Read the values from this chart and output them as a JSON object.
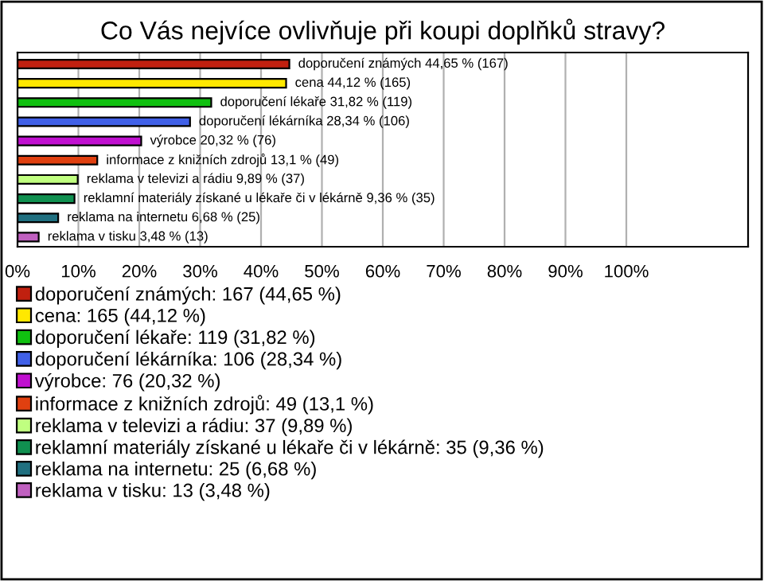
{
  "chart_data": {
    "type": "bar",
    "orientation": "horizontal",
    "title": "Co Vás nejvíce ovlivňuje při koupi doplňků stravy?",
    "categories": [
      null,
      null,
      null,
      null,
      null,
      null,
      null,
      null,
      null,
      null
    ],
    "series": [
      {
        "name": "doporučení známých: 167 (44,65 %)",
        "color": "#c0200f",
        "values": [
          44.65,
          null,
          null,
          null,
          null,
          null,
          null,
          null,
          null,
          null
        ],
        "value_labels": [
          "doporučení známých 44,65 % (167)",
          null,
          null,
          null,
          null,
          null,
          null,
          null,
          null,
          null
        ]
      },
      {
        "name": "cena: 165 (44,12 %)",
        "color": "#ffe800",
        "values": [
          null,
          44.12,
          null,
          null,
          null,
          null,
          null,
          null,
          null,
          null
        ],
        "value_labels": [
          null,
          "cena 44,12 % (165)",
          null,
          null,
          null,
          null,
          null,
          null,
          null,
          null
        ]
      },
      {
        "name": "doporučení lékaře: 119 (31,82 %)",
        "color": "#10c010",
        "values": [
          null,
          null,
          31.82,
          null,
          null,
          null,
          null,
          null,
          null,
          null
        ],
        "value_labels": [
          null,
          null,
          "doporučení lékaře 31,82 % (119)",
          null,
          null,
          null,
          null,
          null,
          null,
          null
        ]
      },
      {
        "name": "doporučení lékárníka: 106 (28,34 %)",
        "color": "#4060e8",
        "values": [
          null,
          null,
          null,
          28.34,
          null,
          null,
          null,
          null,
          null,
          null
        ],
        "value_labels": [
          null,
          null,
          null,
          "doporučení lékárníka 28,34 % (106)",
          null,
          null,
          null,
          null,
          null,
          null
        ]
      },
      {
        "name": "výrobce: 76 (20,32 %)",
        "color": "#c010d0",
        "values": [
          null,
          null,
          null,
          null,
          20.32,
          null,
          null,
          null,
          null,
          null
        ],
        "value_labels": [
          null,
          null,
          null,
          null,
          "výrobce 20,32 % (76)",
          null,
          null,
          null,
          null,
          null
        ]
      },
      {
        "name": "informace z knižních zdrojů: 49 (13,1 %)",
        "color": "#e04010",
        "values": [
          null,
          null,
          null,
          null,
          null,
          13.1,
          null,
          null,
          null,
          null
        ],
        "value_labels": [
          null,
          null,
          null,
          null,
          null,
          "informace z knižních zdrojů 13,1 % (49)",
          null,
          null,
          null,
          null
        ]
      },
      {
        "name": "reklama v televizi a rádiu: 37 (9,89 %)",
        "color": "#c0ff80",
        "values": [
          null,
          null,
          null,
          null,
          null,
          null,
          9.89,
          null,
          null,
          null
        ],
        "value_labels": [
          null,
          null,
          null,
          null,
          null,
          null,
          "reklama v televizi a rádiu 9,89 % (37)",
          null,
          null,
          null
        ]
      },
      {
        "name": "reklamní materiály získané u lékaře či v lékárně: 35 (9,36 %)",
        "color": "#109050",
        "values": [
          null,
          null,
          null,
          null,
          null,
          null,
          null,
          9.36,
          null,
          null
        ],
        "value_labels": [
          null,
          null,
          null,
          null,
          null,
          null,
          null,
          "reklamní materiály získané u lékaře či v lékárně 9,36 % (35)",
          null,
          null
        ]
      },
      {
        "name": "reklama na internetu: 25 (6,68 %)",
        "color": "#207080",
        "values": [
          null,
          null,
          null,
          null,
          null,
          null,
          null,
          null,
          6.68,
          null
        ],
        "value_labels": [
          null,
          null,
          null,
          null,
          null,
          null,
          null,
          null,
          "reklama na internetu 6,68 % (25)",
          null
        ]
      },
      {
        "name": "reklama v tisku: 13 (3,48 %)",
        "color": "#c060c0",
        "values": [
          null,
          null,
          null,
          null,
          null,
          null,
          null,
          null,
          null,
          3.48
        ],
        "value_labels": [
          null,
          null,
          null,
          null,
          null,
          null,
          null,
          null,
          null,
          "reklama v tisku 3,48 % (13)"
        ]
      }
    ],
    "xlim": [
      0,
      120
    ],
    "xticks": [
      {
        "value": 0,
        "label": "0%"
      },
      {
        "value": 10,
        "label": "10%"
      },
      {
        "value": 20,
        "label": "20%"
      },
      {
        "value": 30,
        "label": "30%"
      },
      {
        "value": 40,
        "label": "40%"
      },
      {
        "value": 50,
        "label": "50%"
      },
      {
        "value": 60,
        "label": "60%"
      },
      {
        "value": 70,
        "label": "70%"
      },
      {
        "value": 80,
        "label": "80%"
      },
      {
        "value": 90,
        "label": "90%"
      },
      {
        "value": 100,
        "label": "100%"
      }
    ],
    "grid": "x",
    "legend": "bottom",
    "tick_labels": "x"
  }
}
